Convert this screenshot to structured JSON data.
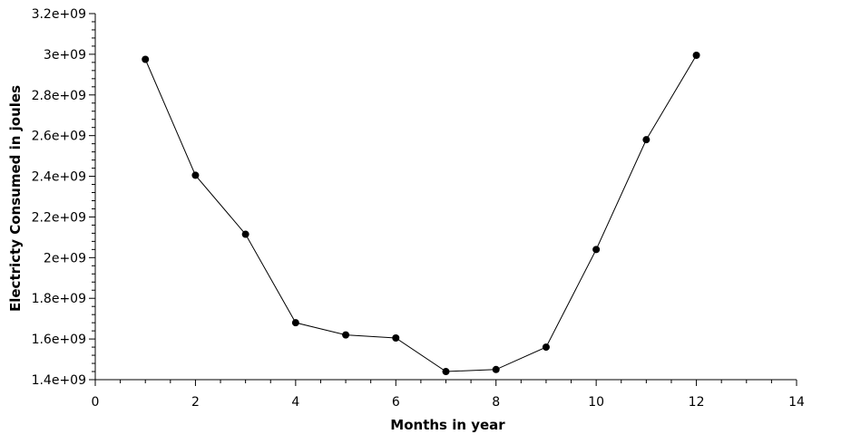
{
  "chart_data": {
    "type": "line",
    "title": "",
    "xlabel": "Months in year",
    "ylabel": "Electricty Consumed in joules",
    "xlim": [
      0,
      14
    ],
    "ylim": [
      1400000000,
      3200000000
    ],
    "x_ticks": [
      0,
      2,
      4,
      6,
      8,
      10,
      12,
      14
    ],
    "x_tick_labels": [
      "0",
      "2",
      "4",
      "6",
      "8",
      "10",
      "12",
      "14"
    ],
    "y_ticks": [
      1400000000,
      1600000000,
      1800000000,
      2000000000,
      2200000000,
      2400000000,
      2600000000,
      2800000000,
      3000000000,
      3200000000
    ],
    "y_tick_labels": [
      "1.4e+09",
      "1.6e+09",
      "1.8e+09",
      "2e+09",
      "2.2e+09",
      "2.4e+09",
      "2.6e+09",
      "2.8e+09",
      "3e+09",
      "3.2e+09"
    ],
    "grid": false,
    "legend": "none",
    "colors": {
      "line": "#000000",
      "marker": "#000000",
      "axis": "#000000"
    },
    "series": [
      {
        "x": [
          1,
          2,
          3,
          4,
          5,
          6,
          7,
          8,
          9,
          10,
          11,
          12
        ],
        "y": [
          2975000000,
          2405000000,
          2115000000,
          1680000000,
          1620000000,
          1605000000,
          1440000000,
          1450000000,
          1560000000,
          2040000000,
          2580000000,
          2995000000
        ]
      }
    ]
  }
}
